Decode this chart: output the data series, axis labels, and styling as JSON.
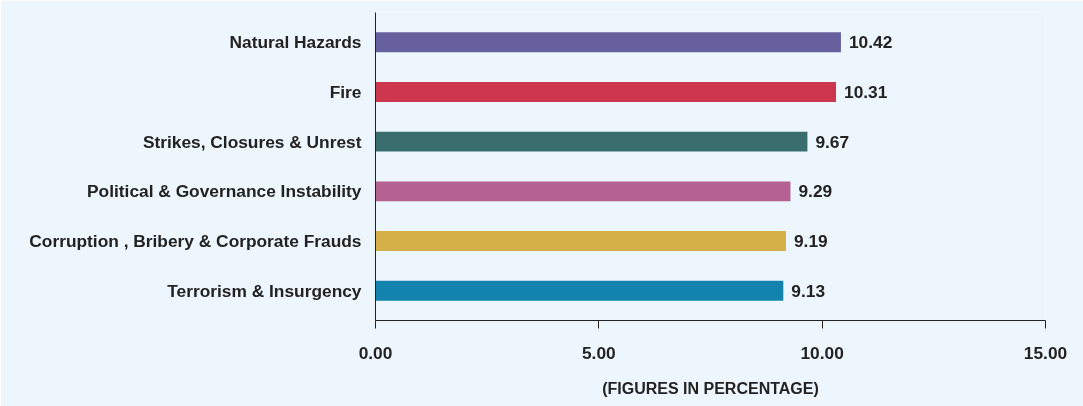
{
  "chart_data": {
    "type": "bar",
    "orientation": "horizontal",
    "xlabel": "(FIGURES IN PERCENTAGE)",
    "categories": [
      "Natural Hazards",
      "Fire",
      "Strikes, Closures & Unrest",
      "Political & Governance Instability",
      "Corruption , Bribery & Corporate Frauds",
      "Terrorism & Insurgency"
    ],
    "values": [
      10.42,
      10.31,
      9.67,
      9.29,
      9.19,
      9.13
    ],
    "colors": [
      "#655f9d",
      "#cc374d",
      "#3a6e6e",
      "#b56191",
      "#d5b048",
      "#1283ad"
    ],
    "xlim": [
      0,
      15
    ],
    "xticks": [
      {
        "value": 0,
        "label": "0.00"
      },
      {
        "value": 5,
        "label": "5.00"
      },
      {
        "value": 10,
        "label": "10.00"
      },
      {
        "value": 15,
        "label": "15.00"
      }
    ],
    "data_labels": true,
    "grid": false
  }
}
